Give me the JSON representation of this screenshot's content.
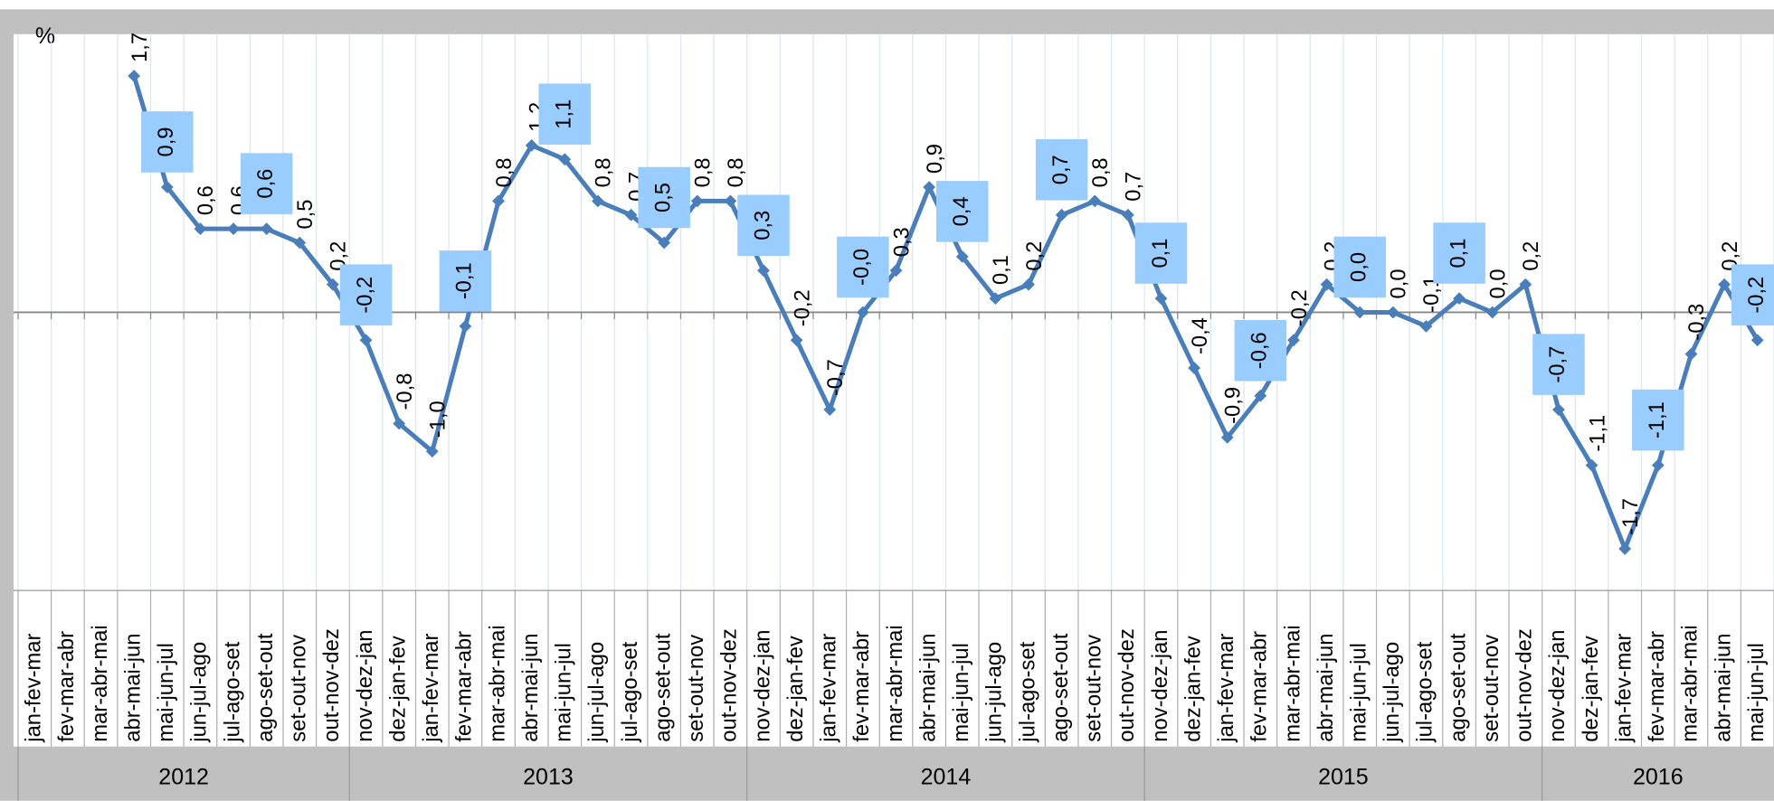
{
  "chart_data": {
    "type": "line",
    "y_label": "%",
    "categories": [
      "jan-fev-mar",
      "fev-mar-abr",
      "mar-abr-mai",
      "abr-mai-jun",
      "mai-jun-jul",
      "jun-jul-ago",
      "jul-ago-set",
      "ago-set-out",
      "set-out-nov",
      "out-nov-dez",
      "nov-dez-jan",
      "dez-jan-fev",
      "jan-fev-mar",
      "fev-mar-abr",
      "mar-abr-mai",
      "abr-mai-jun",
      "mai-jun-jul",
      "jun-jul-ago",
      "jul-ago-set",
      "ago-set-out",
      "set-out-nov",
      "out-nov-dez",
      "nov-dez-jan",
      "dez-jan-fev",
      "jan-fev-mar",
      "fev-mar-abr",
      "mar-abr-mai",
      "abr-mai-jun",
      "mai-jun-jul",
      "jun-jul-ago",
      "jul-ago-set",
      "ago-set-out",
      "set-out-nov",
      "out-nov-dez",
      "nov-dez-jan",
      "dez-jan-fev",
      "jan-fev-mar",
      "fev-mar-abr",
      "mar-abr-mai",
      "abr-mai-jun",
      "mai-jun-jul",
      "jun-jul-ago",
      "jul-ago-set",
      "ago-set-out",
      "set-out-nov",
      "out-nov-dez",
      "nov-dez-jan",
      "dez-jan-fev",
      "jan-fev-mar",
      "fev-mar-abr",
      "mar-abr-mai",
      "abr-mai-jun",
      "mai-jun-jul"
    ],
    "year_groups": [
      {
        "label": "2012",
        "count": 10
      },
      {
        "label": "2013",
        "count": 12
      },
      {
        "label": "2014",
        "count": 12
      },
      {
        "label": "2015",
        "count": 12
      },
      {
        "label": "2016",
        "count": 7
      }
    ],
    "color": "#4a7ebb",
    "label_box_color": "#99ccff",
    "values": [
      null,
      null,
      null,
      1.7,
      0.9,
      0.6,
      0.6,
      0.6,
      0.5,
      0.2,
      -0.2,
      -0.8,
      -1.0,
      -0.1,
      0.8,
      1.2,
      1.1,
      0.8,
      0.7,
      0.5,
      0.8,
      0.8,
      0.3,
      -0.2,
      -0.7,
      0,
      0.3,
      0.9,
      0.4,
      0.1,
      0.2,
      0.7,
      0.8,
      0.7,
      0.1,
      -0.4,
      -0.9,
      -0.6,
      -0.2,
      0.2,
      0.0,
      0.0,
      -0.1,
      0.1,
      0.0,
      0.2,
      -0.7,
      -1.1,
      -1.7,
      -1.1,
      -0.3,
      0.2,
      -0.2
    ],
    "value_labels": [
      null,
      null,
      null,
      "1,7",
      "0,9",
      "0,6",
      "0,6",
      "0,6",
      "0,5",
      "0,2",
      "-0,2",
      "-0,8",
      "-1,0",
      "-0,1",
      "0,8",
      "1,2",
      "1,1",
      "0,8",
      "0,7",
      "0,5",
      "0,8",
      "0,8",
      "0,3",
      "-0,2",
      "-0,7",
      "-0,0",
      "0,3",
      "0,9",
      "0,4",
      "0,1",
      "0,2",
      "0,7",
      "0,8",
      "0,7",
      "0,1",
      "-0,4",
      "-0,9",
      "-0,6",
      "-0,2",
      "0,2",
      "0,0",
      "0,0",
      "-0,1",
      "0,1",
      "0,0",
      "0,2",
      "-0,7",
      "-1,1",
      "-1,7",
      "-1,1",
      "-0,3",
      "0,2",
      "-0,2"
    ],
    "boxed_labels": [
      false,
      false,
      false,
      false,
      true,
      false,
      false,
      true,
      false,
      false,
      true,
      false,
      false,
      true,
      false,
      false,
      true,
      false,
      false,
      true,
      false,
      false,
      true,
      false,
      false,
      true,
      false,
      false,
      true,
      false,
      false,
      true,
      false,
      false,
      true,
      false,
      false,
      true,
      false,
      false,
      true,
      false,
      false,
      true,
      false,
      false,
      true,
      false,
      false,
      true,
      false,
      false,
      true
    ],
    "ylim": [
      -2,
      2
    ],
    "grid": true
  }
}
